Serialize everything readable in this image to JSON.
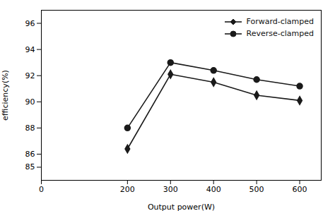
{
  "chart_data": {
    "type": "line",
    "x": [
      200,
      300,
      400,
      500,
      600
    ],
    "series": [
      {
        "name": "Forward-clamped",
        "color": "#1a1a1a",
        "marker": "diamond",
        "values": [
          86.4,
          92.1,
          91.5,
          90.5,
          90.1
        ]
      },
      {
        "name": "Reverse-clamped",
        "color": "#1a1a1a",
        "marker": "circle",
        "values": [
          88.0,
          93.0,
          92.4,
          91.7,
          91.2
        ]
      }
    ],
    "xlabel": "Output power(W)",
    "ylabel": "efficiency(%)",
    "xlim": [
      0,
      650
    ],
    "ylim": [
      84.0,
      97.0
    ],
    "xticks": [
      0,
      200,
      300,
      400,
      500,
      600
    ],
    "yticks": [
      85,
      86,
      88,
      90,
      92,
      94,
      96
    ],
    "legend": "upper right"
  }
}
